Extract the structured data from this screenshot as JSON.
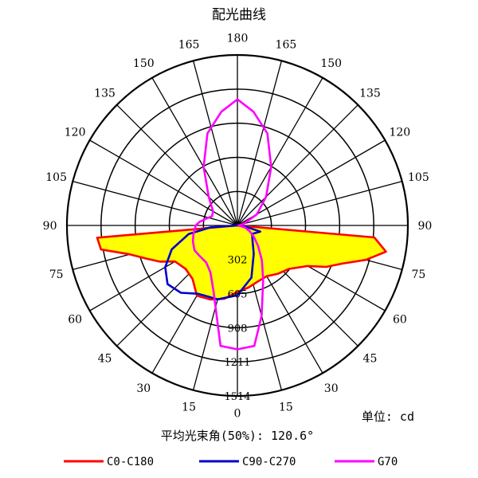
{
  "chart_data": {
    "type": "polar",
    "title": "配光曲线",
    "unit_label": "单位: cd",
    "beam_angle_label": "平均光束角(50%): 120.6°",
    "radial_max": 1514,
    "rings": [
      302,
      605,
      908,
      1211,
      1514
    ],
    "angle_ticks": [
      {
        "angle": 0,
        "label": "0"
      },
      {
        "angle": 15,
        "label": "15"
      },
      {
        "angle": 30,
        "label": "30"
      },
      {
        "angle": 45,
        "label": "45"
      },
      {
        "angle": 60,
        "label": "60"
      },
      {
        "angle": 75,
        "label": "75"
      },
      {
        "angle": 90,
        "label": "90"
      },
      {
        "angle": 105,
        "label": "105"
      },
      {
        "angle": 120,
        "label": "120"
      },
      {
        "angle": 135,
        "label": "135"
      },
      {
        "angle": 150,
        "label": "150"
      },
      {
        "angle": 165,
        "label": "165"
      },
      {
        "angle": 180,
        "label": "180"
      },
      {
        "angle": -15,
        "label": "15"
      },
      {
        "angle": -30,
        "label": "30"
      },
      {
        "angle": -45,
        "label": "45"
      },
      {
        "angle": -60,
        "label": "60"
      },
      {
        "angle": -75,
        "label": "75"
      },
      {
        "angle": -90,
        "label": "90"
      },
      {
        "angle": -105,
        "label": "105"
      },
      {
        "angle": -120,
        "label": "120"
      },
      {
        "angle": -135,
        "label": "135"
      },
      {
        "angle": -150,
        "label": "150"
      },
      {
        "angle": -165,
        "label": "165"
      }
    ],
    "series": [
      {
        "name": "C0-C180",
        "color": "#ff0000",
        "fill": "#ffff00",
        "points": [
          [
            -90,
            0
          ],
          [
            -85,
            1220
          ],
          [
            -80,
            1340
          ],
          [
            -75,
            1180
          ],
          [
            -70,
            990
          ],
          [
            -65,
            870
          ],
          [
            -60,
            720
          ],
          [
            -50,
            600
          ],
          [
            -40,
            560
          ],
          [
            -30,
            520
          ],
          [
            -20,
            530
          ],
          [
            -10,
            560
          ],
          [
            0,
            590
          ],
          [
            10,
            660
          ],
          [
            20,
            700
          ],
          [
            30,
            720
          ],
          [
            40,
            620
          ],
          [
            50,
            600
          ],
          [
            60,
            640
          ],
          [
            65,
            760
          ],
          [
            70,
            860
          ],
          [
            75,
            990
          ],
          [
            80,
            1230
          ],
          [
            85,
            1250
          ],
          [
            90,
            0
          ]
        ]
      },
      {
        "name": "C90-C270",
        "color": "#0000cc",
        "fill": "",
        "points": [
          [
            -90,
            0
          ],
          [
            -82,
            70
          ],
          [
            -75,
            210
          ],
          [
            -60,
            150
          ],
          [
            -45,
            190
          ],
          [
            -30,
            290
          ],
          [
            -15,
            480
          ],
          [
            0,
            620
          ],
          [
            15,
            680
          ],
          [
            30,
            700
          ],
          [
            40,
            780
          ],
          [
            50,
            810
          ],
          [
            60,
            740
          ],
          [
            70,
            620
          ],
          [
            80,
            440
          ],
          [
            86,
            240
          ],
          [
            90,
            0
          ]
        ]
      },
      {
        "name": "G70",
        "color": "#ff00ff",
        "fill": "",
        "points": [
          [
            0,
            1100
          ],
          [
            -8,
            1080
          ],
          [
            -15,
            830
          ],
          [
            -25,
            540
          ],
          [
            -35,
            380
          ],
          [
            -45,
            260
          ],
          [
            -55,
            180
          ],
          [
            -65,
            120
          ],
          [
            -75,
            70
          ],
          [
            -90,
            10
          ],
          [
            -105,
            60
          ],
          [
            -120,
            200
          ],
          [
            -135,
            360
          ],
          [
            -150,
            600
          ],
          [
            -162,
            860
          ],
          [
            -172,
            1020
          ],
          [
            -180,
            1120
          ],
          [
            172,
            1020
          ],
          [
            162,
            860
          ],
          [
            150,
            600
          ],
          [
            135,
            360
          ],
          [
            120,
            250
          ],
          [
            110,
            240
          ],
          [
            100,
            300
          ],
          [
            95,
            340
          ],
          [
            90,
            370
          ],
          [
            85,
            380
          ],
          [
            78,
            400
          ],
          [
            70,
            420
          ],
          [
            60,
            440
          ],
          [
            50,
            430
          ],
          [
            40,
            430
          ],
          [
            30,
            480
          ],
          [
            20,
            620
          ],
          [
            8,
            1080
          ],
          [
            0,
            1100
          ]
        ]
      }
    ],
    "legend": [
      {
        "name": "C0-C180",
        "color": "#ff0000"
      },
      {
        "name": "C90-C270",
        "color": "#0000cc"
      },
      {
        "name": "G70",
        "color": "#ff00ff"
      }
    ]
  }
}
